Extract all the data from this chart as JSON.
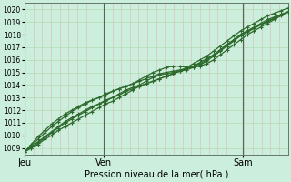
{
  "title": "",
  "xlabel": "Pression niveau de la mer( hPa )",
  "ylabel": "",
  "ylim": [
    1008.5,
    1020.5
  ],
  "xlim": [
    0,
    100
  ],
  "yticks": [
    1009,
    1010,
    1011,
    1012,
    1013,
    1014,
    1015,
    1016,
    1017,
    1018,
    1019,
    1020
  ],
  "xtick_positions": [
    0,
    30,
    83
  ],
  "xtick_labels": [
    "Jeu",
    "Ven",
    "Sam"
  ],
  "vline_positions": [
    0,
    30,
    83
  ],
  "bg_color": "#cceedd",
  "line_color": "#2d6a2d",
  "grid_color_h": "#aadaaa",
  "grid_color_v": "#ddb8b8",
  "line_width": 0.9,
  "marker": "+",
  "marker_size": 3.5,
  "marker_ew": 0.8,
  "n_vgrid": 30,
  "series": [
    [
      1008.7,
      1009.0,
      1009.3,
      1009.7,
      1010.0,
      1010.4,
      1010.7,
      1011.0,
      1011.3,
      1011.6,
      1011.9,
      1012.2,
      1012.5,
      1012.7,
      1013.0,
      1013.3,
      1013.6,
      1013.9,
      1014.1,
      1014.3,
      1014.5,
      1014.7,
      1014.9,
      1015.1,
      1015.4,
      1015.7,
      1016.0,
      1016.3,
      1016.7,
      1017.1,
      1017.5,
      1017.9,
      1018.3,
      1018.6,
      1018.9,
      1019.2,
      1019.5,
      1019.7,
      1019.9,
      1020.1
    ],
    [
      1008.7,
      1009.0,
      1009.4,
      1009.8,
      1010.2,
      1010.6,
      1011.0,
      1011.3,
      1011.6,
      1011.9,
      1012.2,
      1012.5,
      1012.7,
      1013.0,
      1013.2,
      1013.5,
      1013.7,
      1013.9,
      1014.1,
      1014.3,
      1014.5,
      1014.7,
      1014.9,
      1015.1,
      1015.3,
      1015.5,
      1015.8,
      1016.1,
      1016.4,
      1016.8,
      1017.2,
      1017.6,
      1018.0,
      1018.3,
      1018.6,
      1018.9,
      1019.2,
      1019.4,
      1019.6,
      1019.8
    ],
    [
      1008.7,
      1009.1,
      1009.5,
      1009.9,
      1010.3,
      1010.7,
      1011.1,
      1011.4,
      1011.7,
      1012.0,
      1012.3,
      1012.5,
      1012.8,
      1013.0,
      1013.3,
      1013.6,
      1013.8,
      1014.0,
      1014.3,
      1014.6,
      1014.8,
      1014.9,
      1015.0,
      1015.1,
      1015.2,
      1015.4,
      1015.6,
      1015.9,
      1016.3,
      1016.7,
      1017.1,
      1017.5,
      1017.9,
      1018.2,
      1018.5,
      1018.8,
      1019.1,
      1019.3,
      1019.6,
      1019.8
    ],
    [
      1008.7,
      1009.2,
      1009.7,
      1010.2,
      1010.7,
      1011.1,
      1011.5,
      1011.9,
      1012.2,
      1012.5,
      1012.8,
      1013.0,
      1013.2,
      1013.5,
      1013.7,
      1013.9,
      1014.1,
      1014.3,
      1014.5,
      1014.7,
      1014.9,
      1015.0,
      1015.1,
      1015.2,
      1015.3,
      1015.5,
      1015.7,
      1016.0,
      1016.4,
      1016.8,
      1017.2,
      1017.6,
      1018.0,
      1018.3,
      1018.5,
      1018.8,
      1019.0,
      1019.3,
      1019.6,
      1019.8
    ],
    [
      1008.7,
      1009.3,
      1009.9,
      1010.4,
      1010.9,
      1011.3,
      1011.7,
      1012.0,
      1012.3,
      1012.6,
      1012.8,
      1013.0,
      1013.3,
      1013.5,
      1013.7,
      1013.9,
      1014.1,
      1014.4,
      1014.7,
      1015.0,
      1015.2,
      1015.4,
      1015.5,
      1015.5,
      1015.4,
      1015.4,
      1015.5,
      1015.7,
      1016.0,
      1016.4,
      1016.8,
      1017.2,
      1017.6,
      1018.0,
      1018.3,
      1018.6,
      1018.9,
      1019.2,
      1019.5,
      1019.8
    ]
  ]
}
